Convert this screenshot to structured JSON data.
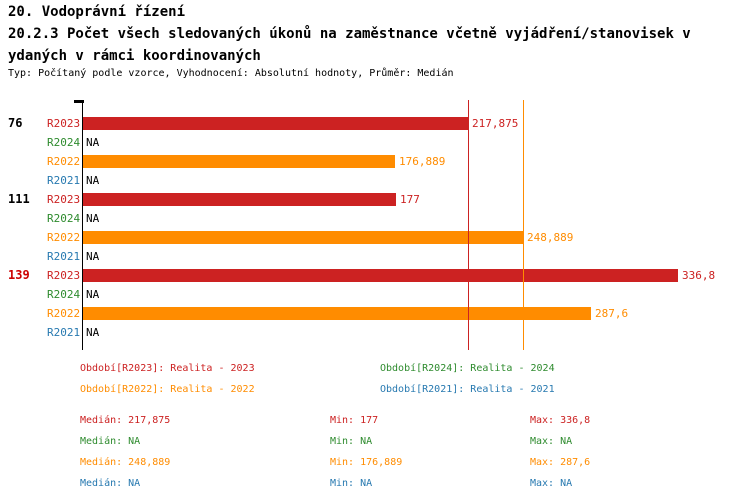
{
  "title": {
    "line1": "20. Vodoprávní řízení",
    "line2": "20.2.3 Počet všech sledovaných úkonů na zaměstnance včetně vyjádření/stanovisek v",
    "line3": "ydaných v rámci koordinovaných",
    "subtitle": "Typ: Počítaný podle vzorce, Vyhodnocení: Absolutní hodnoty, Průměr: Medián"
  },
  "colors": {
    "R2023": "#cc2222",
    "R2024": "#2e8b2e",
    "R2022": "#ff8c00",
    "R2021": "#2779b0",
    "na": "#000000",
    "highlight": "#cc0000",
    "axis": "#000000"
  },
  "chart_data": {
    "type": "bar",
    "orientation": "horizontal",
    "value_axis_min": 0,
    "value_axis_max": 336.8,
    "grid": false,
    "series_order": [
      "R2023",
      "R2024",
      "R2022",
      "R2021"
    ],
    "groups": [
      {
        "label": "76",
        "label_highlight": false,
        "bars": [
          {
            "series": "R2023",
            "value": 217.875,
            "text": "217,875"
          },
          {
            "series": "R2024",
            "value": null,
            "text": "NA"
          },
          {
            "series": "R2022",
            "value": 176.889,
            "text": "176,889"
          },
          {
            "series": "R2021",
            "value": null,
            "text": "NA"
          }
        ]
      },
      {
        "label": "111",
        "label_highlight": false,
        "bars": [
          {
            "series": "R2023",
            "value": 177,
            "text": "177"
          },
          {
            "series": "R2024",
            "value": null,
            "text": "NA"
          },
          {
            "series": "R2022",
            "value": 248.889,
            "text": "248,889"
          },
          {
            "series": "R2021",
            "value": null,
            "text": "NA"
          }
        ]
      },
      {
        "label": "139",
        "label_highlight": true,
        "bars": [
          {
            "series": "R2023",
            "value": 336.8,
            "text": "336,8"
          },
          {
            "series": "R2024",
            "value": null,
            "text": "NA"
          },
          {
            "series": "R2022",
            "value": 287.6,
            "text": "287,6"
          },
          {
            "series": "R2021",
            "value": null,
            "text": "NA"
          }
        ]
      }
    ],
    "reference_lines": [
      {
        "series": "R2023",
        "value": 217.875
      },
      {
        "series": "R2022",
        "value": 248.889
      }
    ]
  },
  "legend": [
    {
      "series": "R2023",
      "text": "Období[R2023]: Realita - 2023"
    },
    {
      "series": "R2024",
      "text": "Období[R2024]: Realita - 2024"
    },
    {
      "series": "R2022",
      "text": "Období[R2022]: Realita - 2022"
    },
    {
      "series": "R2021",
      "text": "Období[R2021]: Realita - 2021"
    }
  ],
  "stats": [
    {
      "series": "R2023",
      "median": "Medián: 217,875",
      "min": "Min: 177",
      "max": "Max: 336,8"
    },
    {
      "series": "R2024",
      "median": "Medián: NA",
      "min": "Min: NA",
      "max": "Max: NA"
    },
    {
      "series": "R2022",
      "median": "Medián: 248,889",
      "min": "Min: 176,889",
      "max": "Max: 287,6"
    },
    {
      "series": "R2021",
      "median": "Medián: NA",
      "min": "Min: NA",
      "max": "Max: NA"
    }
  ]
}
